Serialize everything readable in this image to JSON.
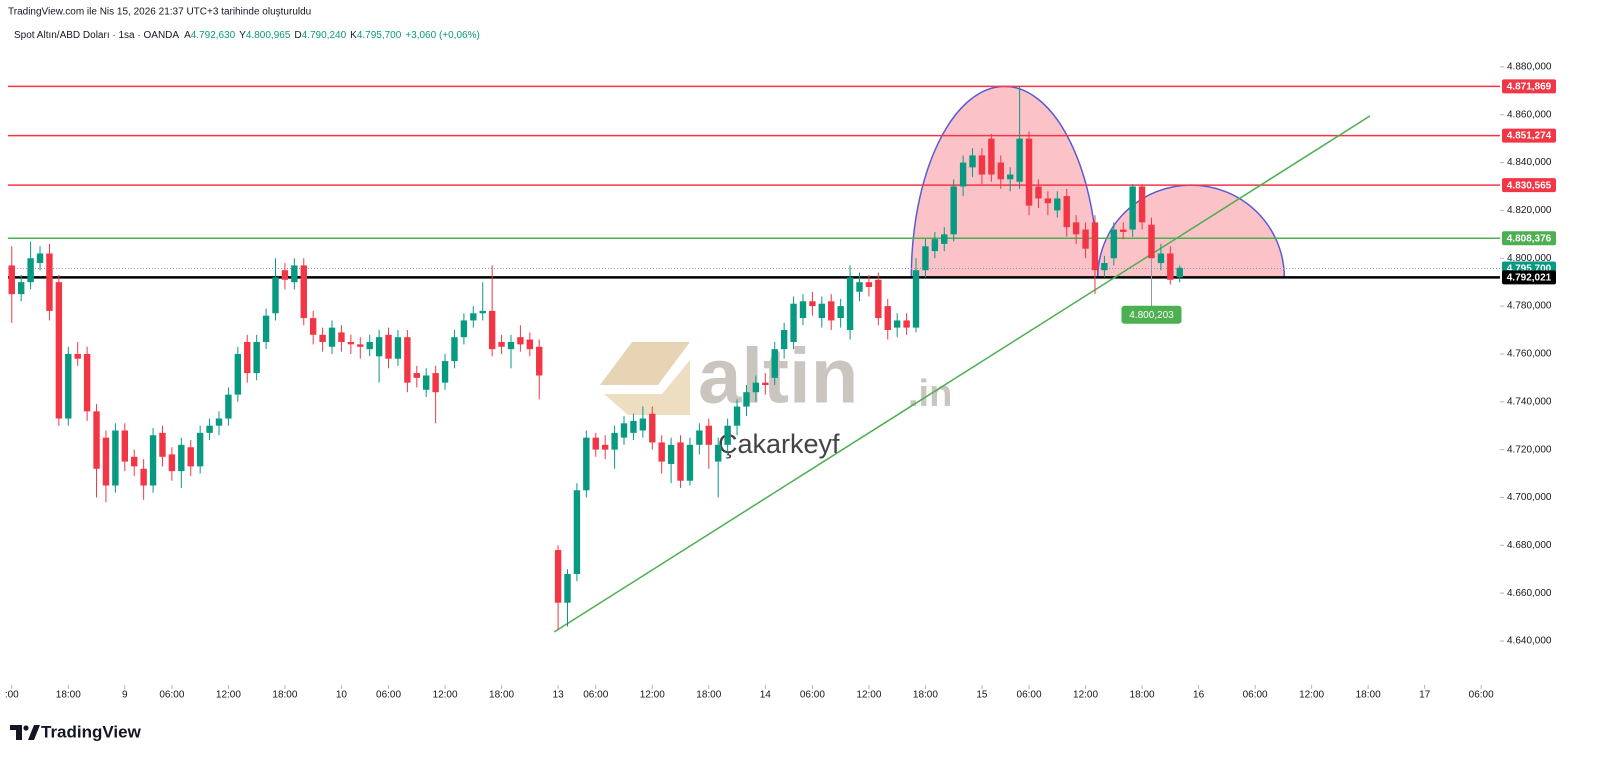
{
  "header": {
    "created": "TradingView.com ile Nis 15, 2026 21:37 UTC+3 tarihinde oluşturuldu"
  },
  "legend": {
    "symbol": "Spot Altın/ABD Doları · 1sa · OANDA",
    "items": [
      {
        "key": "A",
        "text": "4.792,630"
      },
      {
        "key": "Y",
        "text": "4.800,965"
      },
      {
        "key": "D",
        "text": "4.790,240"
      },
      {
        "key": "K",
        "text": "4.795,700"
      }
    ],
    "change": "+3,060 (+0,06%)"
  },
  "watermark": {
    "name": "altin",
    "suffix": ".in",
    "author": "Çakarkeyf"
  },
  "footer": {
    "brand": "TradingView"
  },
  "chart_data": {
    "type": "candlestick",
    "up_color": "#089981",
    "down_color": "#f23645",
    "xlim": [
      -0.4,
      158
    ],
    "ylim": [
      4621.6,
      4899.6
    ],
    "xticks": [
      {
        "value": 0,
        "label": ":00"
      },
      {
        "value": 6,
        "label": "18:00"
      },
      {
        "value": 12,
        "label": "9"
      },
      {
        "value": 17,
        "label": "06:00"
      },
      {
        "value": 23,
        "label": "12:00"
      },
      {
        "value": 29,
        "label": "18:00"
      },
      {
        "value": 35,
        "label": "10"
      },
      {
        "value": 40,
        "label": "06:00"
      },
      {
        "value": 46,
        "label": "12:00"
      },
      {
        "value": 52,
        "label": "18:00"
      },
      {
        "value": 58,
        "label": "13"
      },
      {
        "value": 62,
        "label": "06:00"
      },
      {
        "value": 68,
        "label": "12:00"
      },
      {
        "value": 74,
        "label": "18:00"
      },
      {
        "value": 80,
        "label": "14"
      },
      {
        "value": 85,
        "label": "06:00"
      },
      {
        "value": 91,
        "label": "12:00"
      },
      {
        "value": 97,
        "label": "18:00"
      },
      {
        "value": 103,
        "label": "15"
      },
      {
        "value": 108,
        "label": "06:00"
      },
      {
        "value": 114,
        "label": "12:00"
      },
      {
        "value": 120,
        "label": "18:00"
      },
      {
        "value": 126,
        "label": "16"
      },
      {
        "value": 132,
        "label": "06:00"
      },
      {
        "value": 138,
        "label": "12:00"
      },
      {
        "value": 144,
        "label": "18:00"
      },
      {
        "value": 150,
        "label": "17"
      },
      {
        "value": 156,
        "label": "06:00"
      }
    ],
    "yticks": [
      {
        "value": 4640,
        "label": "4.640,000"
      },
      {
        "value": 4660,
        "label": "4.660,000"
      },
      {
        "value": 4680,
        "label": "4.680,000"
      },
      {
        "value": 4700,
        "label": "4.700,000"
      },
      {
        "value": 4720,
        "label": "4.720,000"
      },
      {
        "value": 4740,
        "label": "4.740,000"
      },
      {
        "value": 4760,
        "label": "4.760,000"
      },
      {
        "value": 4780,
        "label": "4.780,000"
      },
      {
        "value": 4800,
        "label": "4.800,000"
      },
      {
        "value": 4820,
        "label": "4.820,000"
      },
      {
        "value": 4840,
        "label": "4.840,000"
      },
      {
        "value": 4860,
        "label": "4.860,000"
      },
      {
        "value": 4880,
        "label": "4.880,000"
      }
    ],
    "x": [
      0,
      1,
      2,
      3,
      4,
      5,
      6,
      7,
      8,
      9,
      10,
      11,
      12,
      13,
      14,
      15,
      16,
      17,
      18,
      19,
      20,
      21,
      22,
      23,
      24,
      25,
      26,
      27,
      28,
      29,
      30,
      31,
      32,
      33,
      34,
      35,
      36,
      37,
      38,
      39,
      40,
      41,
      42,
      43,
      44,
      45,
      46,
      47,
      48,
      49,
      50,
      51,
      52,
      53,
      54,
      55,
      56,
      58,
      59,
      60,
      61,
      62,
      63,
      64,
      65,
      66,
      67,
      68,
      69,
      70,
      71,
      72,
      73,
      74,
      75,
      76,
      77,
      78,
      79,
      80,
      81,
      82,
      83,
      84,
      85,
      86,
      87,
      88,
      89,
      90,
      91,
      92,
      93,
      94,
      95,
      96,
      97,
      98,
      99,
      100,
      101,
      102,
      103,
      104,
      105,
      106,
      107,
      108,
      109,
      110,
      111,
      112,
      113,
      114,
      115,
      116,
      117,
      118,
      119,
      120,
      121,
      122,
      123,
      124
    ],
    "open": [
      4797,
      4785,
      4790,
      4798,
      4802,
      4790,
      4733,
      4760,
      4760,
      4736,
      4725,
      4705,
      4728,
      4717,
      4712,
      4705,
      4727,
      4718,
      4711,
      4721,
      4713,
      4727,
      4730,
      4733,
      4743,
      4765,
      4752,
      4765,
      4777,
      4795,
      4790,
      4797,
      4775,
      4768,
      4763,
      4769,
      4765,
      4764,
      4762,
      4759,
      4768,
      4758,
      4767,
      4752,
      4745,
      4752,
      4748,
      4757,
      4767,
      4774,
      4777,
      4778,
      4765,
      4762,
      4767,
      4766,
      4763,
      4678,
      4656,
      4668,
      4703,
      4725,
      4722,
      4720,
      4725,
      4727,
      4728,
      4735,
      4723,
      4714,
      4723,
      4707,
      4722,
      4730,
      4715,
      4722,
      4730,
      4738,
      4744,
      4748,
      4750,
      4762,
      4765,
      4775,
      4782,
      4775,
      4782,
      4775,
      4770,
      4786,
      4790,
      4791,
      4780,
      4771,
      4774,
      4771,
      4795,
      4803,
      4806,
      4810,
      4830,
      4838,
      4843,
      4850,
      4840,
      4833,
      4832,
      4850,
      4830,
      4825,
      4820,
      4826,
      4815,
      4812,
      4815,
      4795,
      4800,
      4812,
      4812,
      4830,
      4814,
      4798,
      4802,
      4792
    ],
    "high": [
      4805,
      4793,
      4807,
      4805,
      4806,
      4793,
      4763,
      4765,
      4763,
      4739,
      4728,
      4731,
      4731,
      4720,
      4716,
      4729,
      4730,
      4721,
      4725,
      4724,
      4730,
      4733,
      4736,
      4746,
      4763,
      4768,
      4768,
      4779,
      4800,
      4798,
      4800,
      4800,
      4778,
      4771,
      4774,
      4772,
      4768,
      4767,
      4768,
      4770,
      4771,
      4770,
      4770,
      4755,
      4754,
      4755,
      4760,
      4770,
      4777,
      4780,
      4790,
      4797,
      4768,
      4768,
      4772,
      4769,
      4766,
      4680,
      4670,
      4706,
      4728,
      4727,
      4726,
      4730,
      4734,
      4735,
      4738,
      4738,
      4726,
      4725,
      4726,
      4725,
      4731,
      4733,
      4725,
      4733,
      4741,
      4747,
      4751,
      4752,
      4765,
      4773,
      4784,
      4785,
      4786,
      4784,
      4785,
      4783,
      4797,
      4794,
      4793,
      4794,
      4783,
      4777,
      4777,
      4800,
      4808,
      4811,
      4813,
      4833,
      4843,
      4846,
      4846,
      4852,
      4843,
      4838,
      4872,
      4853,
      4833,
      4828,
      4828,
      4829,
      4818,
      4815,
      4818,
      4801,
      4815,
      4815,
      4831,
      4831,
      4817,
      4806,
      4805,
      4797
    ],
    "low": [
      4773,
      4782,
      4787,
      4795,
      4774,
      4730,
      4730,
      4755,
      4732,
      4700,
      4698,
      4702,
      4711,
      4709,
      4699,
      4702,
      4713,
      4707,
      4704,
      4709,
      4710,
      4724,
      4726,
      4730,
      4740,
      4748,
      4749,
      4762,
      4774,
      4787,
      4787,
      4772,
      4764,
      4761,
      4760,
      4761,
      4760,
      4758,
      4759,
      4748,
      4754,
      4755,
      4744,
      4746,
      4742,
      4731,
      4745,
      4754,
      4764,
      4771,
      4774,
      4759,
      4760,
      4754,
      4761,
      4759,
      4741,
      4645,
      4646,
      4665,
      4700,
      4717,
      4716,
      4712,
      4722,
      4724,
      4725,
      4720,
      4710,
      4706,
      4704,
      4705,
      4718,
      4712,
      4700,
      4718,
      4726,
      4734,
      4740,
      4743,
      4747,
      4758,
      4762,
      4772,
      4776,
      4771,
      4770,
      4771,
      4766,
      4782,
      4784,
      4772,
      4766,
      4767,
      4768,
      4769,
      4792,
      4800,
      4803,
      4807,
      4826,
      4834,
      4831,
      4832,
      4829,
      4828,
      4829,
      4818,
      4821,
      4818,
      4817,
      4809,
      4806,
      4800,
      4785,
      4792,
      4797,
      4808,
      4809,
      4812,
      4780,
      4795,
      4789,
      4790
    ],
    "close": [
      4785,
      4790,
      4800,
      4802,
      4778,
      4733,
      4760,
      4758,
      4736,
      4712,
      4705,
      4728,
      4715,
      4713,
      4705,
      4726,
      4717,
      4711,
      4722,
      4713,
      4727,
      4730,
      4733,
      4743,
      4760,
      4752,
      4765,
      4776,
      4792,
      4791,
      4797,
      4775,
      4768,
      4765,
      4771,
      4765,
      4764,
      4763,
      4765,
      4767,
      4758,
      4767,
      4748,
      4750,
      4751,
      4744,
      4757,
      4767,
      4774,
      4777,
      4778,
      4762,
      4763,
      4765,
      4764,
      4762,
      4751,
      4656,
      4668,
      4703,
      4725,
      4720,
      4720,
      4727,
      4731,
      4732,
      4733,
      4723,
      4715,
      4722,
      4707,
      4722,
      4728,
      4722,
      4722,
      4730,
      4738,
      4744,
      4748,
      4747,
      4762,
      4770,
      4781,
      4782,
      4780,
      4781,
      4774,
      4780,
      4792,
      4790,
      4788,
      4775,
      4770,
      4774,
      4771,
      4795,
      4805,
      4808,
      4810,
      4830,
      4840,
      4843,
      4835,
      4835,
      4833,
      4835,
      4850,
      4822,
      4825,
      4823,
      4825,
      4813,
      4810,
      4804,
      4795,
      4798,
      4812,
      4811,
      4830,
      4815,
      4800,
      4802,
      4791,
      4796
    ],
    "levels": [
      {
        "value": 4871.869,
        "label": "4.871,869",
        "color": "#f23645",
        "style": "solid"
      },
      {
        "value": 4851.274,
        "label": "4.851,274",
        "color": "#f23645",
        "style": "solid"
      },
      {
        "value": 4830.565,
        "label": "4.830,565",
        "color": "#f23645",
        "style": "solid"
      },
      {
        "value": 4808.376,
        "label": "4.808,376",
        "color": "#4caf50",
        "style": "solid"
      },
      {
        "value": 4795.7,
        "label": "4.795,700",
        "color": "#089981",
        "style": "dotted"
      },
      {
        "value": 4792.021,
        "label": "4.792,021",
        "color": "#000000",
        "style": "bold"
      }
    ],
    "trendline": {
      "x": [
        57.6,
        144.2
      ],
      "y": [
        4643.8,
        4859.5
      ],
      "color": "#4caf50"
    },
    "shapes": [
      {
        "x": [
          95.5,
          106.5,
          115.3
        ],
        "y": [
          4792.021,
          4871.869,
          4792.021
        ]
      },
      {
        "x": [
          115.3,
          125.8,
          135.1
        ],
        "y": [
          4792.021,
          4830.565,
          4792.021
        ]
      }
    ],
    "callout": {
      "x": 121,
      "value": 4800.203,
      "label": "4.800,203",
      "color": "#4caf50"
    }
  }
}
